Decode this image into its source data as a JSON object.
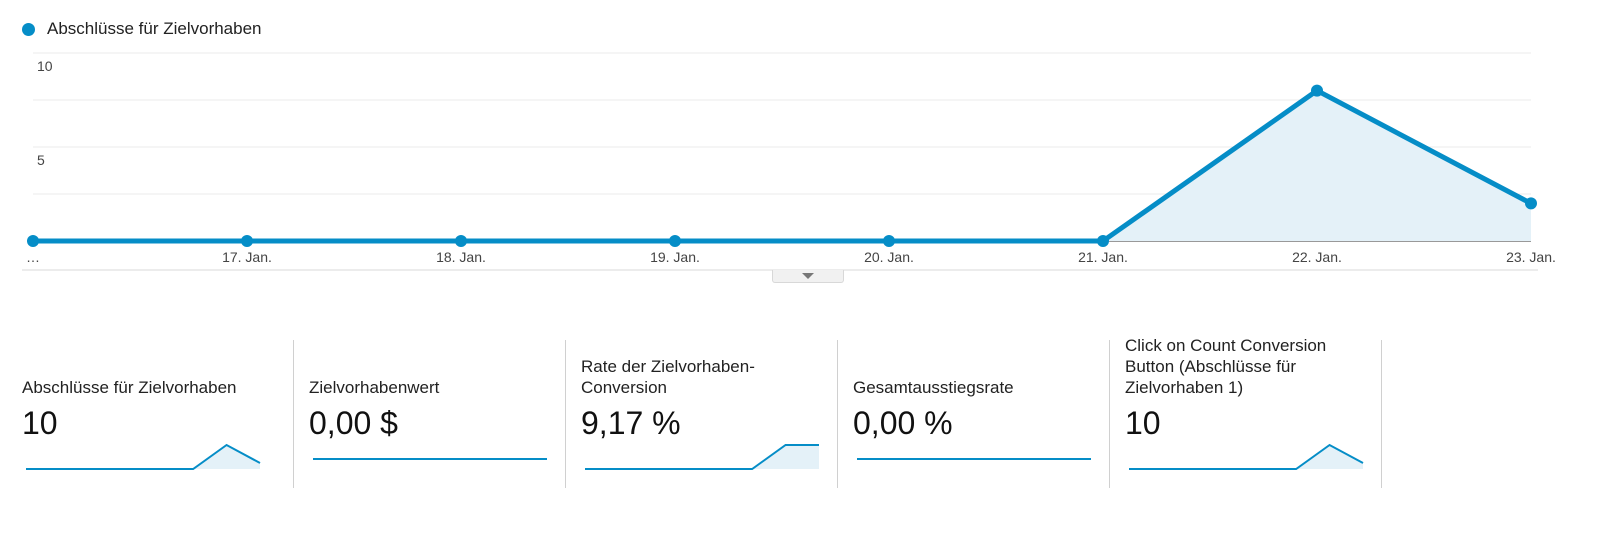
{
  "legend": {
    "label": "Abschlüsse für Zielvorhaben",
    "color": "#058dc7"
  },
  "chart_data": {
    "type": "area",
    "series": [
      {
        "name": "Abschlüsse für Zielvorhaben",
        "values": [
          0,
          0,
          0,
          0,
          0,
          0,
          8,
          2
        ]
      }
    ],
    "categories": [
      "…",
      "17. Jan.",
      "18. Jan.",
      "19. Jan.",
      "20. Jan.",
      "21. Jan.",
      "22. Jan.",
      "23. Jan."
    ],
    "yticks": [
      "10",
      "5"
    ],
    "ylim": [
      0,
      10
    ],
    "grid": true,
    "legend_position": "top-left",
    "color": "#058dc7"
  },
  "cards": [
    {
      "label": "Abschlüsse für Zielvorhaben",
      "value": "10",
      "spark": [
        0,
        0,
        0,
        0,
        0,
        0,
        8,
        2
      ]
    },
    {
      "label": "Zielvorhabenwert",
      "value": "0,00 $",
      "spark": [
        0,
        0,
        0,
        0,
        0,
        0,
        0,
        0
      ]
    },
    {
      "label": "Rate der Zielvorhaben-Conversion",
      "value": "9,17 %",
      "spark": [
        0,
        0,
        0,
        0,
        0,
        0,
        8,
        8
      ]
    },
    {
      "label": "Gesamtausstiegsrate",
      "value": "0,00 %",
      "spark": [
        0,
        0,
        0,
        0,
        0,
        0,
        0,
        0
      ]
    },
    {
      "label": "Click on Count Conversion Button (Abschlüsse für Zielvorhaben 1)",
      "value": "10",
      "spark": [
        0,
        0,
        0,
        0,
        0,
        0,
        8,
        2
      ]
    }
  ]
}
